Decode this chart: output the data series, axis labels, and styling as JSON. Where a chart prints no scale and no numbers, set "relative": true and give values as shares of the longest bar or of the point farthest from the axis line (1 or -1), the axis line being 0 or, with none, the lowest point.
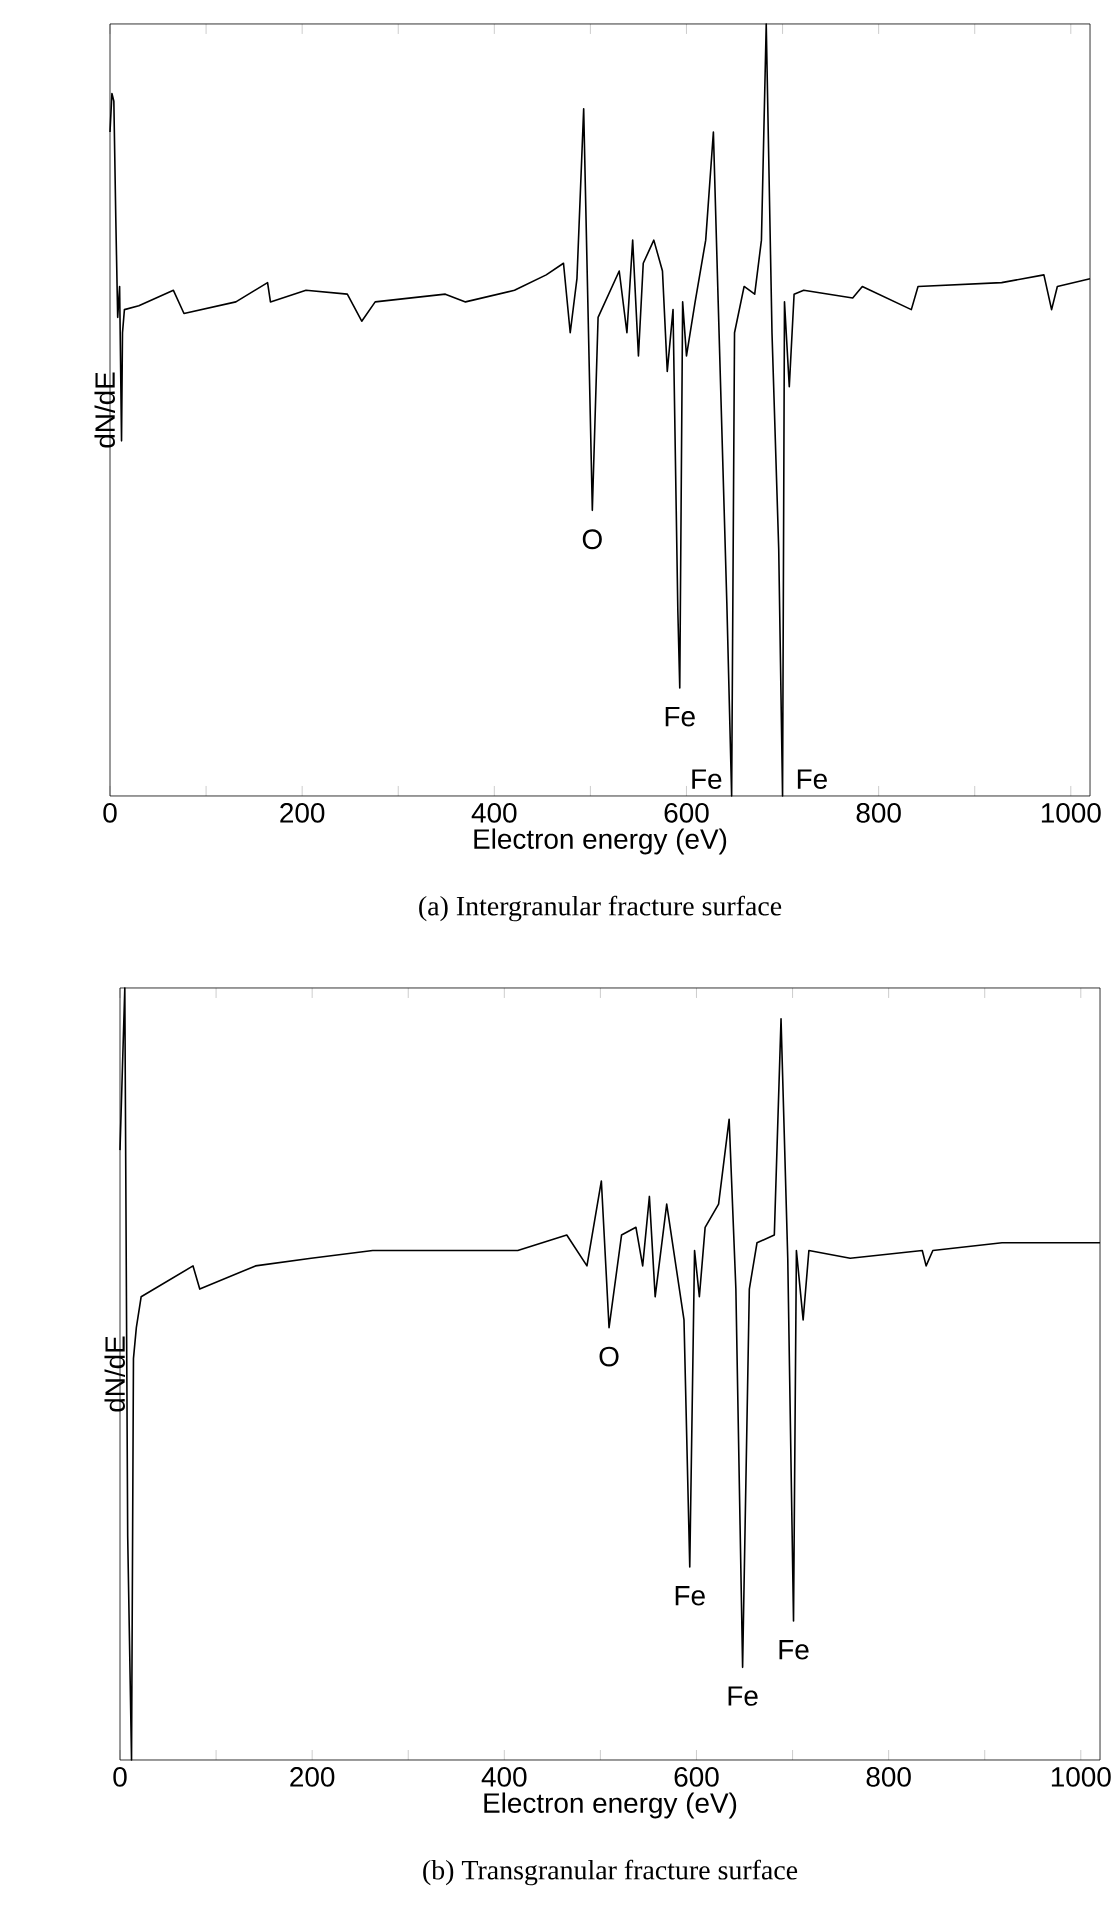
{
  "chart_data": [
    {
      "type": "line",
      "relative": true,
      "xlabel": "Electron energy  (eV)",
      "ylabel": "dN/dE",
      "xlim": [
        0,
        1020
      ],
      "xticks": [
        0,
        {
          "value": 100,
          "label": null
        },
        200,
        {
          "value": 300,
          "label": null
        },
        400,
        {
          "value": 500,
          "label": null
        },
        600,
        {
          "value": 700,
          "label": null
        },
        800,
        {
          "value": 900,
          "label": null
        },
        1000
      ],
      "tick_labels": "x",
      "x": [
        0,
        2,
        4,
        6,
        8,
        10,
        12,
        13,
        15,
        30,
        66,
        77,
        131,
        164,
        167,
        204,
        247,
        262,
        276,
        349,
        370,
        421,
        454,
        472,
        479,
        486,
        493,
        502,
        508,
        530,
        538,
        544,
        550,
        555,
        566,
        575,
        580,
        586,
        591,
        593,
        596,
        600,
        609,
        620,
        628,
        633,
        642,
        647,
        650,
        660,
        671,
        678,
        683,
        689,
        696,
        700,
        702,
        707,
        712,
        722,
        773,
        783,
        834,
        841,
        928,
        972,
        980,
        986,
        1020
      ],
      "series": [
        {
          "color": "#000000",
          "values": [
            0.86,
            0.91,
            0.9,
            0.75,
            0.62,
            0.66,
            0.46,
            0.6,
            0.63,
            0.635,
            0.655,
            0.625,
            0.64,
            0.665,
            0.64,
            0.655,
            0.65,
            0.615,
            0.64,
            0.65,
            0.64,
            0.655,
            0.675,
            0.69,
            0.6,
            0.67,
            0.89,
            0.37,
            0.62,
            0.68,
            0.6,
            0.72,
            0.57,
            0.69,
            0.72,
            0.68,
            0.55,
            0.63,
            0.24,
            0.14,
            0.64,
            0.57,
            0.64,
            0.72,
            0.86,
            0.64,
            0.25,
            0.0,
            0.6,
            0.66,
            0.65,
            0.72,
            1.0,
            0.6,
            0.32,
            0.0,
            0.64,
            0.53,
            0.65,
            0.655,
            0.645,
            0.66,
            0.63,
            0.66,
            0.665,
            0.675,
            0.63,
            0.66,
            0.67
          ]
        }
      ],
      "annotations": [
        {
          "text": "O",
          "x": 502,
          "y": 0.37
        },
        {
          "text": "Fe",
          "x": 593,
          "y": 0.14
        },
        {
          "text": "Fe",
          "x": 647,
          "y": 0.0
        },
        {
          "text": "Fe",
          "x": 700,
          "y": 0.0
        },
        "(a)    Intergranular fracture surface"
      ]
    },
    {
      "type": "line",
      "relative": true,
      "xlabel": "Electron energy  (eV)",
      "ylabel": "dN/dE",
      "xlim": [
        0,
        1020
      ],
      "xticks": [
        0,
        {
          "value": 100,
          "label": null
        },
        200,
        {
          "value": 300,
          "label": null
        },
        400,
        {
          "value": 500,
          "label": null
        },
        600,
        {
          "value": 700,
          "label": null
        },
        800,
        {
          "value": 900,
          "label": null
        },
        1000
      ],
      "tick_labels": "x",
      "x": [
        0,
        5,
        8,
        12,
        14,
        17,
        22,
        76,
        83,
        141,
        199,
        263,
        342,
        414,
        465,
        486,
        501,
        509,
        522,
        537,
        544,
        551,
        557,
        569,
        587,
        593,
        598,
        603,
        609,
        623,
        634,
        641,
        648,
        655,
        663,
        681,
        688,
        695,
        701,
        704,
        711,
        717,
        760,
        835,
        839,
        846,
        918,
        1020
      ],
      "series": [
        {
          "color": "#000000",
          "values": [
            0.79,
            1.0,
            0.29,
            0.0,
            0.52,
            0.56,
            0.6,
            0.64,
            0.61,
            0.64,
            0.65,
            0.66,
            0.66,
            0.66,
            0.68,
            0.64,
            0.75,
            0.56,
            0.68,
            0.69,
            0.64,
            0.73,
            0.6,
            0.72,
            0.57,
            0.25,
            0.66,
            0.6,
            0.69,
            0.72,
            0.83,
            0.61,
            0.12,
            0.61,
            0.67,
            0.68,
            0.96,
            0.65,
            0.18,
            0.66,
            0.57,
            0.66,
            0.65,
            0.66,
            0.64,
            0.66,
            0.67,
            0.67
          ]
        }
      ],
      "annotations": [
        {
          "text": "O",
          "x": 509,
          "y": 0.56
        },
        {
          "text": "Fe",
          "x": 593,
          "y": 0.25
        },
        {
          "text": "Fe",
          "x": 648,
          "y": 0.12
        },
        {
          "text": "Fe",
          "x": 701,
          "y": 0.18
        },
        "(b)    Transgranular fracture surface"
      ]
    }
  ]
}
